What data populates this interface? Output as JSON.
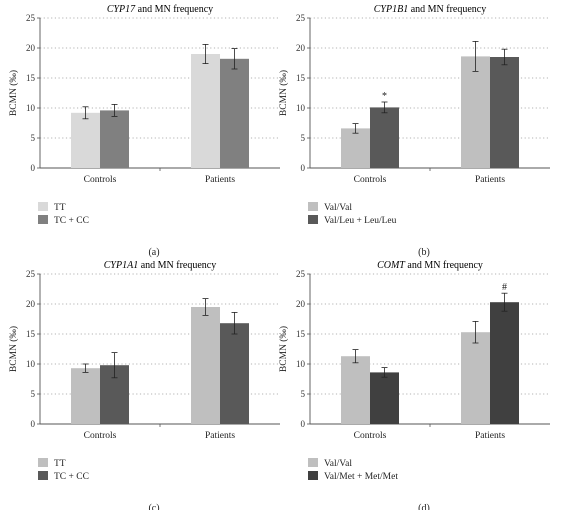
{
  "chart_data": [
    {
      "type": "bar",
      "title_gene": "CYP17",
      "title_rest": " and MN frequency",
      "ylabel": "BCMN (‰)",
      "ylim": [
        0,
        25
      ],
      "yticks": [
        0,
        5,
        10,
        15,
        20,
        25
      ],
      "categories": [
        "Controls",
        "Patients"
      ],
      "series": [
        {
          "name": "TT",
          "color": "#d9d9d9",
          "values": [
            9.2,
            19.0
          ],
          "errors": [
            1.0,
            1.6
          ]
        },
        {
          "name": "TC + CC",
          "color": "#808080",
          "values": [
            9.6,
            18.2
          ],
          "errors": [
            1.0,
            1.7
          ]
        }
      ],
      "annotations": [],
      "sublabel": "(a)"
    },
    {
      "type": "bar",
      "title_gene": "CYP1B1",
      "title_rest": " and MN frequency",
      "ylabel": "BCMN (‰)",
      "ylim": [
        0,
        25
      ],
      "yticks": [
        0,
        5,
        10,
        15,
        20,
        25
      ],
      "categories": [
        "Controls",
        "Patients"
      ],
      "series": [
        {
          "name": "Val/Val",
          "color": "#bfbfbf",
          "values": [
            6.6,
            18.6
          ],
          "errors": [
            0.8,
            2.5
          ]
        },
        {
          "name": "Val/Leu + Leu/Leu",
          "color": "#595959",
          "values": [
            10.1,
            18.5
          ],
          "errors": [
            0.9,
            1.3
          ]
        }
      ],
      "annotations": [
        {
          "series": 1,
          "category": 0,
          "text": "*"
        }
      ],
      "sublabel": "(b)"
    },
    {
      "type": "bar",
      "title_gene": "CYP1A1",
      "title_rest": " and MN frequency",
      "ylabel": "BCMN (‰)",
      "ylim": [
        0,
        25
      ],
      "yticks": [
        0,
        5,
        10,
        15,
        20,
        25
      ],
      "categories": [
        "Controls",
        "Patients"
      ],
      "series": [
        {
          "name": "TT",
          "color": "#bfbfbf",
          "values": [
            9.3,
            19.5
          ],
          "errors": [
            0.7,
            1.4
          ]
        },
        {
          "name": "TC + CC",
          "color": "#595959",
          "values": [
            9.8,
            16.8
          ],
          "errors": [
            2.1,
            1.8
          ]
        }
      ],
      "annotations": [],
      "sublabel": "(c)"
    },
    {
      "type": "bar",
      "title_gene": "COMT",
      "title_rest": " and MN frequency",
      "ylabel": "BCMN (‰)",
      "ylim": [
        0,
        25
      ],
      "yticks": [
        0,
        5,
        10,
        15,
        20,
        25
      ],
      "categories": [
        "Controls",
        "Patients"
      ],
      "series": [
        {
          "name": "Val/Val",
          "color": "#bfbfbf",
          "values": [
            11.3,
            15.3
          ],
          "errors": [
            1.1,
            1.8
          ]
        },
        {
          "name": "Val/Met + Met/Met",
          "color": "#404040",
          "values": [
            8.6,
            20.3
          ],
          "errors": [
            0.8,
            1.5
          ]
        }
      ],
      "annotations": [
        {
          "series": 1,
          "category": 1,
          "text": "#"
        }
      ],
      "sublabel": "(d)"
    }
  ]
}
